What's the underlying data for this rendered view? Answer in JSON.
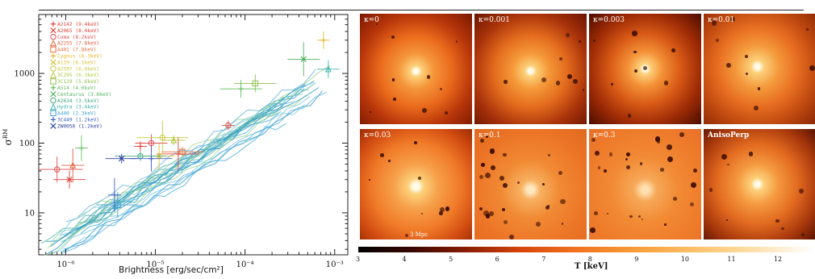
{
  "chart_data": [
    {
      "type": "scatter",
      "xlabel": "Brightness [erg/sec/cm²]",
      "ylabel": "σRM",
      "xscale": "log",
      "yscale": "log",
      "xlim": [
        5e-07,
        0.0014
      ],
      "ylim": [
        2.5,
        7000
      ],
      "x_ticks": [
        "10⁻⁶",
        "10⁻⁵",
        "10⁻⁴",
        "10⁻³"
      ],
      "y_ticks": [
        "10",
        "100",
        "1000"
      ],
      "legend_position": "top-left",
      "series": [
        {
          "name": "A2142 (9.4keV)",
          "marker": "+",
          "color": "#e0403a",
          "points": [
            [
              6.8e-06,
              90
            ],
            [
              1.8e-05,
              70
            ]
          ]
        },
        {
          "name": "A2065 (8.4keV)",
          "marker": "x",
          "color": "#e0403a",
          "points": [
            [
              1.1e-06,
              30
            ]
          ]
        },
        {
          "name": "Coma (8.2keV)",
          "marker": "o",
          "color": "#e05050",
          "points": [
            [
              8e-07,
              42
            ],
            [
              9e-06,
              100
            ],
            [
              6.5e-05,
              180
            ]
          ]
        },
        {
          "name": "A2255 (7.8keV)",
          "marker": "triangle",
          "color": "#e06040",
          "points": [
            [
              1.2e-06,
              48
            ]
          ]
        },
        {
          "name": "A401 (7.8keV)",
          "marker": "square",
          "color": "#e07040",
          "points": [
            [
              2e-05,
              75
            ]
          ]
        },
        {
          "name": "Cygnus (6.3keV)",
          "marker": "+",
          "color": "#e8b830",
          "points": [
            [
              0.00075,
              3000
            ]
          ]
        },
        {
          "name": "A119 (6.1keV)",
          "marker": "x",
          "color": "#d8c030",
          "points": [
            [
              1.1e-05,
              65
            ]
          ]
        },
        {
          "name": "A2597 (6.0keV)",
          "marker": "o",
          "color": "#c8c840",
          "points": [
            [
              1.2e-05,
              120
            ]
          ]
        },
        {
          "name": "3C295 (6.3keV)",
          "marker": "triangle",
          "color": "#b0c840",
          "points": [
            [
              1.6e-05,
              110
            ]
          ]
        },
        {
          "name": "3C129 (5.6keV)",
          "marker": "square",
          "color": "#90c050",
          "points": [
            [
              0.00013,
              720
            ]
          ]
        },
        {
          "name": "A514 (4.0keV)",
          "marker": "+",
          "color": "#60c060",
          "points": [
            [
              1.5e-06,
              85
            ],
            [
              9e-05,
              600
            ]
          ]
        },
        {
          "name": "Centaurus (3.6keV)",
          "marker": "x",
          "color": "#50b060",
          "points": [
            [
              0.00045,
              1600
            ]
          ]
        },
        {
          "name": "A2634 (3.5keV)",
          "marker": "o",
          "color": "#40a880",
          "points": [
            [
              6.8e-06,
              65
            ]
          ]
        },
        {
          "name": "Hydra (3.4keV)",
          "marker": "triangle",
          "color": "#40b0b0",
          "points": [
            [
              0.00085,
              1150
            ]
          ]
        },
        {
          "name": "A400 (2.3keV)",
          "marker": "square",
          "color": "#40a0d0",
          "points": [
            [
              3.8e-06,
              13
            ]
          ]
        },
        {
          "name": "3C449 (1.2keV)",
          "marker": "+",
          "color": "#4060c0",
          "points": [
            [
              3.5e-06,
              18
            ],
            [
              9e-06,
              60
            ]
          ]
        },
        {
          "name": "ZW0056 (1.2keV)",
          "marker": "x",
          "color": "#3040a0",
          "points": [
            [
              4.2e-06,
              60
            ]
          ]
        }
      ]
    },
    {
      "type": "heatmap",
      "colorbar_label": "T [keV]",
      "colorbar_ticks": [
        "3",
        "4",
        "5",
        "6",
        "7",
        "8",
        "9",
        "10",
        "11",
        "12"
      ],
      "colorbar_range": [
        3,
        12.8
      ],
      "panels": [
        {
          "label": "κ=0"
        },
        {
          "label": "κ=0.001"
        },
        {
          "label": "κ=0.003"
        },
        {
          "label": "κ=0.01"
        },
        {
          "label": "κ=0.03"
        },
        {
          "label": "κ=0.1"
        },
        {
          "label": "κ=0.3"
        },
        {
          "label": "AnisoPerp"
        }
      ],
      "scalebar_label": "3 Mpc"
    }
  ],
  "colors": {
    "sim_tracks": [
      "#7ec8e8",
      "#4fb0dc",
      "#2e9ad0",
      "#8fd0c0",
      "#5cb8a8",
      "#a0d890",
      "#6ab4e0",
      "#3aa0c8"
    ],
    "axis": "#222222"
  }
}
